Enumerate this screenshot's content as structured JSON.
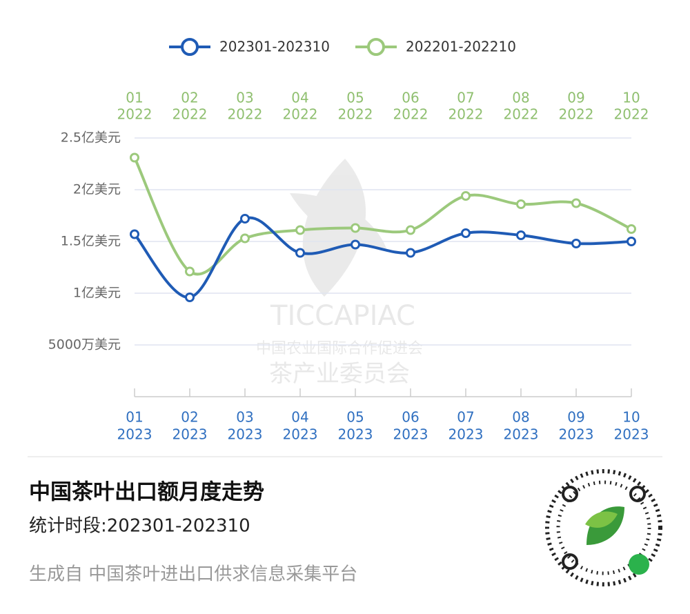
{
  "chart_data": {
    "type": "line",
    "series": [
      {
        "name": "202301-202310",
        "color": "#1f5bb5",
        "values": [
          1.57,
          0.96,
          1.72,
          1.39,
          1.47,
          1.39,
          1.58,
          1.56,
          1.48,
          1.5
        ]
      },
      {
        "name": "202201-202210",
        "color": "#9cc97c",
        "values": [
          2.31,
          1.21,
          1.53,
          1.61,
          1.63,
          1.61,
          1.94,
          1.86,
          1.87,
          1.62
        ]
      }
    ],
    "categories": [
      [
        "01",
        "2023"
      ],
      [
        "02",
        "2023"
      ],
      [
        "03",
        "2023"
      ],
      [
        "04",
        "2023"
      ],
      [
        "05",
        "2023"
      ],
      [
        "06",
        "2023"
      ],
      [
        "07",
        "2023"
      ],
      [
        "08",
        "2023"
      ],
      [
        "09",
        "2023"
      ],
      [
        "10",
        "2023"
      ]
    ],
    "x2_categories": [
      [
        "01",
        "2022"
      ],
      [
        "02",
        "2022"
      ],
      [
        "03",
        "2022"
      ],
      [
        "04",
        "2022"
      ],
      [
        "05",
        "2022"
      ],
      [
        "06",
        "2022"
      ],
      [
        "07",
        "2022"
      ],
      [
        "08",
        "2022"
      ],
      [
        "09",
        "2022"
      ],
      [
        "10",
        "2022"
      ]
    ],
    "ylim": [
      0,
      2.5
    ],
    "yticks": [
      {
        "value": 0.5,
        "label": "5000万美元"
      },
      {
        "value": 1,
        "label": "1亿美元"
      },
      {
        "value": 1.5,
        "label": "1.5亿美元"
      },
      {
        "value": 2,
        "label": "2亿美元"
      },
      {
        "value": 2.5,
        "label": "2.5亿美元"
      }
    ],
    "grid": true,
    "smooth": true,
    "watermark": [
      "TICCAPIAC",
      "中国农业国际合作促进会",
      "茶产业委员会"
    ]
  },
  "footer": {
    "title": "中国茶叶出口额月度走势",
    "subtitle": "统计时段:202301-202310",
    "source": "生成自 中国茶叶进出口供求信息采集平台"
  }
}
